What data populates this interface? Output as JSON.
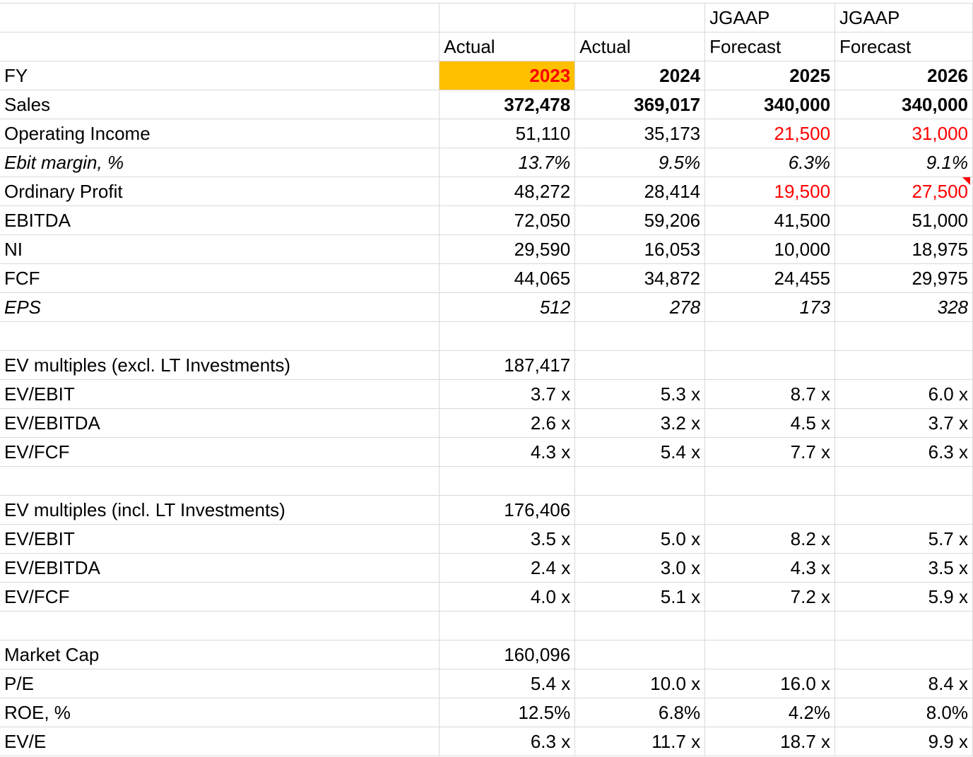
{
  "header": {
    "row1": [
      "",
      "",
      "",
      "JGAAP",
      "JGAAP"
    ],
    "row2": [
      "",
      "Actual",
      "Actual",
      "Forecast",
      "Forecast"
    ],
    "fy_label": "FY",
    "years": [
      "2023",
      "2024",
      "2025",
      "2026"
    ]
  },
  "rows": [
    {
      "label": "Sales",
      "values": [
        "372,478",
        "369,017",
        "340,000",
        "340,000"
      ]
    },
    {
      "label": "Operating Income",
      "values": [
        "51,110",
        "35,173",
        "21,500",
        "31,000"
      ]
    },
    {
      "label": "Ebit margin, %",
      "values": [
        "13.7%",
        "9.5%",
        "6.3%",
        "9.1%"
      ]
    },
    {
      "label": "Ordinary Profit",
      "values": [
        "48,272",
        "28,414",
        "19,500",
        "27,500"
      ]
    },
    {
      "label": "EBITDA",
      "values": [
        "72,050",
        "59,206",
        "41,500",
        "51,000"
      ]
    },
    {
      "label": "NI",
      "values": [
        "29,590",
        "16,053",
        "10,000",
        "18,975"
      ]
    },
    {
      "label": "FCF",
      "values": [
        "44,065",
        "34,872",
        "24,455",
        "29,975"
      ]
    },
    {
      "label": "EPS",
      "values": [
        "512",
        "278",
        "173",
        "328"
      ]
    },
    {
      "label": "EV multiples (excl. LT Investments)",
      "values": [
        "187,417",
        "",
        "",
        ""
      ]
    },
    {
      "label": "EV/EBIT",
      "values": [
        "3.7 x",
        "5.3 x",
        "8.7 x",
        "6.0 x"
      ]
    },
    {
      "label": "EV/EBITDA",
      "values": [
        "2.6 x",
        "3.2 x",
        "4.5 x",
        "3.7 x"
      ]
    },
    {
      "label": "EV/FCF",
      "values": [
        "4.3 x",
        "5.4 x",
        "7.7 x",
        "6.3 x"
      ]
    },
    {
      "label": "EV multiples (incl. LT Investments)",
      "values": [
        "176,406",
        "",
        "",
        ""
      ]
    },
    {
      "label": "EV/EBIT",
      "values": [
        "3.5 x",
        "5.0 x",
        "8.2 x",
        "5.7 x"
      ]
    },
    {
      "label": "EV/EBITDA",
      "values": [
        "2.4 x",
        "3.0 x",
        "4.3 x",
        "3.5 x"
      ]
    },
    {
      "label": "EV/FCF",
      "values": [
        "4.0 x",
        "5.1 x",
        "7.2 x",
        "5.9 x"
      ]
    },
    {
      "label": "Market Cap",
      "values": [
        "160,096",
        "",
        "",
        ""
      ]
    },
    {
      "label": "P/E",
      "values": [
        "5.4 x",
        "10.0 x",
        "16.0 x",
        "8.4 x"
      ]
    },
    {
      "label": "ROE, %",
      "values": [
        "12.5%",
        "6.8%",
        "4.2%",
        "8.0%"
      ]
    },
    {
      "label": "EV/E",
      "values": [
        "6.3 x",
        "11.7 x",
        "18.7 x",
        "9.9 x"
      ]
    }
  ],
  "colors": {
    "highlight_fill": "#ffc000",
    "forecast_red": "#ff0000",
    "gridline": "#d9d9d9"
  }
}
